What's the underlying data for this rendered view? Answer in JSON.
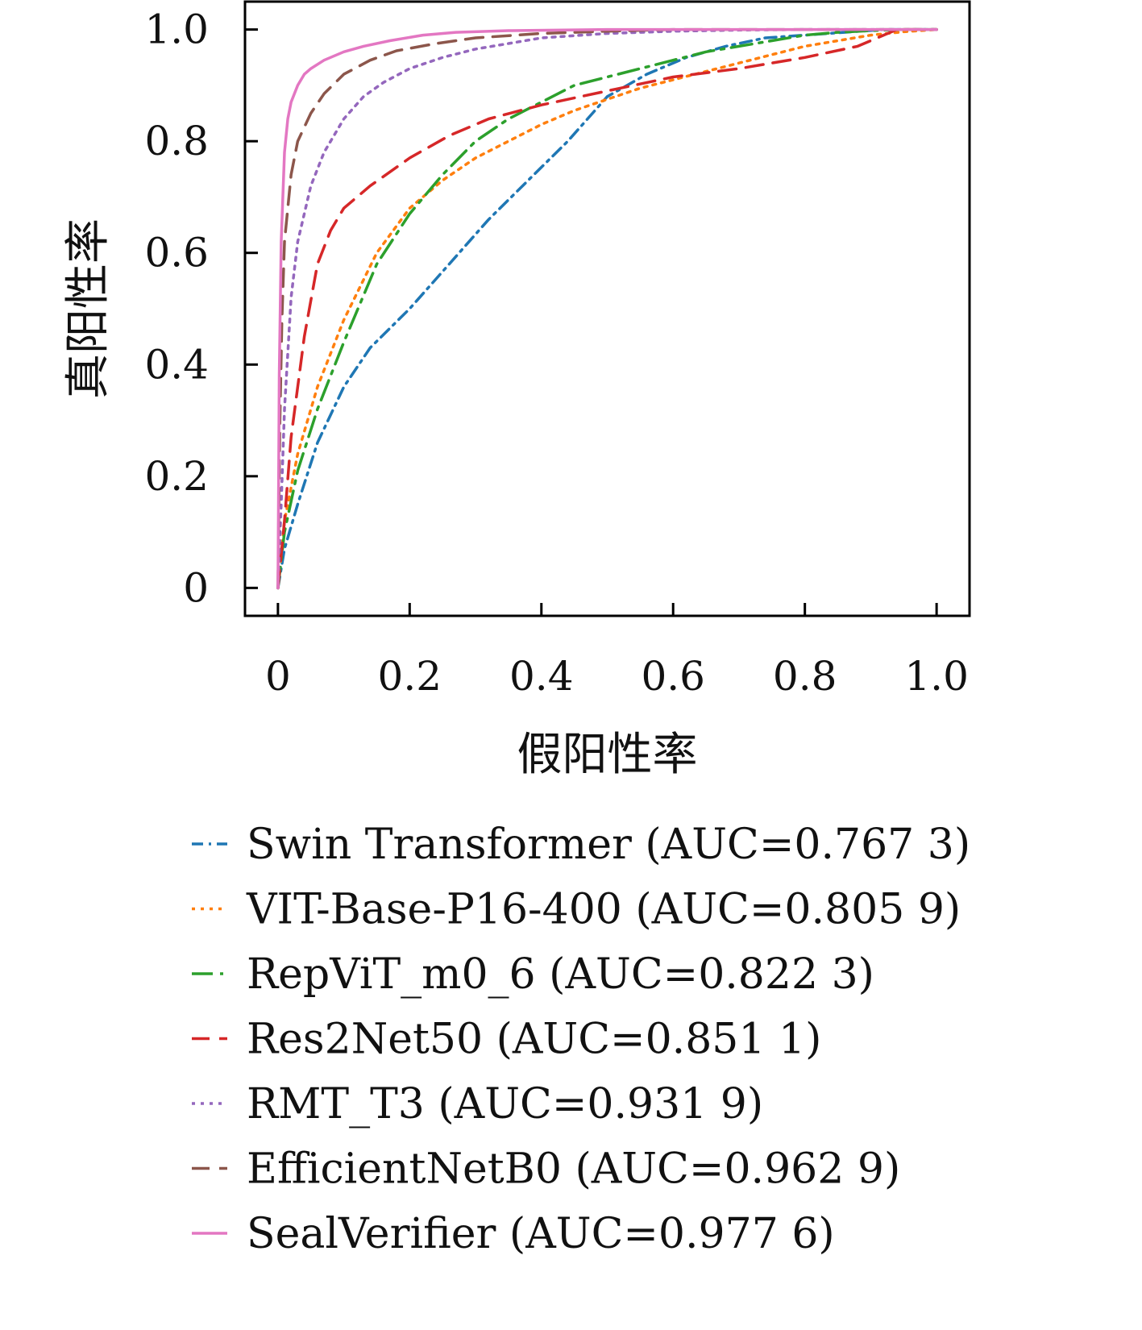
{
  "chart_data": {
    "type": "line",
    "title": "",
    "xlabel": "假阳性率",
    "ylabel": "真阳性率",
    "xlim": [
      -0.05,
      1.05
    ],
    "ylim": [
      -0.05,
      1.05
    ],
    "x_ticks": [
      0,
      0.2,
      0.4,
      0.6,
      0.8,
      1.0
    ],
    "y_ticks": [
      0,
      0.2,
      0.4,
      0.6,
      0.8,
      1.0
    ],
    "x_tick_labels": [
      "0",
      "0.2",
      "0.4",
      "0.6",
      "0.8",
      "1.0"
    ],
    "y_tick_labels": [
      "0",
      "0.2",
      "0.4",
      "0.6",
      "0.8",
      "1.0"
    ],
    "grid": false,
    "legend_position": "below",
    "series": [
      {
        "name": "Swin Transformer (AUC=0.767 3)",
        "color": "#1f77b4",
        "dash": "dashdot",
        "x": [
          0,
          0.01,
          0.03,
          0.06,
          0.1,
          0.14,
          0.2,
          0.26,
          0.32,
          0.38,
          0.44,
          0.5,
          0.56,
          0.62,
          0.68,
          0.74,
          0.8,
          0.86,
          0.92,
          0.96,
          1.0
        ],
        "y": [
          0,
          0.07,
          0.15,
          0.26,
          0.36,
          0.43,
          0.5,
          0.58,
          0.66,
          0.73,
          0.8,
          0.88,
          0.92,
          0.95,
          0.97,
          0.985,
          0.99,
          0.995,
          1.0,
          1.0,
          1.0
        ]
      },
      {
        "name": "VIT-Base-P16-400 (AUC=0.805 9)",
        "color": "#ff7f0e",
        "dash": "dotted",
        "x": [
          0,
          0.01,
          0.03,
          0.06,
          0.1,
          0.15,
          0.2,
          0.25,
          0.3,
          0.35,
          0.4,
          0.45,
          0.5,
          0.55,
          0.6,
          0.65,
          0.7,
          0.75,
          0.8,
          0.85,
          0.9,
          0.95,
          1.0
        ],
        "y": [
          0,
          0.12,
          0.24,
          0.36,
          0.48,
          0.6,
          0.68,
          0.73,
          0.77,
          0.8,
          0.83,
          0.855,
          0.875,
          0.895,
          0.91,
          0.925,
          0.94,
          0.955,
          0.97,
          0.98,
          0.99,
          0.996,
          1.0
        ]
      },
      {
        "name": "RepViT_m0_6 (AUC=0.822 3)",
        "color": "#2ca02c",
        "dash": "longdashdot",
        "x": [
          0,
          0.01,
          0.03,
          0.06,
          0.1,
          0.15,
          0.2,
          0.25,
          0.3,
          0.35,
          0.4,
          0.45,
          0.5,
          0.55,
          0.6,
          0.65,
          0.7,
          0.75,
          0.8,
          0.85,
          0.9,
          0.95,
          1.0
        ],
        "y": [
          0,
          0.1,
          0.21,
          0.32,
          0.44,
          0.58,
          0.67,
          0.74,
          0.8,
          0.84,
          0.87,
          0.9,
          0.915,
          0.93,
          0.945,
          0.96,
          0.97,
          0.98,
          0.99,
          0.995,
          0.998,
          1.0,
          1.0
        ]
      },
      {
        "name": "Res2Net50 (AUC=0.851 1)",
        "color": "#d62728",
        "dash": "dashed",
        "x": [
          0,
          0.01,
          0.02,
          0.04,
          0.06,
          0.08,
          0.1,
          0.14,
          0.2,
          0.26,
          0.32,
          0.4,
          0.5,
          0.6,
          0.7,
          0.8,
          0.88,
          0.94,
          1.0
        ],
        "y": [
          0,
          0.12,
          0.27,
          0.45,
          0.58,
          0.64,
          0.68,
          0.72,
          0.77,
          0.81,
          0.84,
          0.865,
          0.89,
          0.915,
          0.93,
          0.95,
          0.97,
          1.0,
          1.0
        ]
      },
      {
        "name": "RMT_T3 (AUC=0.931 9)",
        "color": "#9467bd",
        "dash": "dotted",
        "x": [
          0,
          0.005,
          0.01,
          0.02,
          0.03,
          0.05,
          0.07,
          0.1,
          0.13,
          0.16,
          0.2,
          0.25,
          0.3,
          0.35,
          0.4,
          0.5,
          0.6,
          0.7,
          0.8,
          0.9,
          1.0
        ],
        "y": [
          0,
          0.15,
          0.32,
          0.52,
          0.62,
          0.72,
          0.78,
          0.84,
          0.88,
          0.905,
          0.93,
          0.95,
          0.965,
          0.975,
          0.985,
          0.993,
          0.997,
          0.999,
          1.0,
          1.0,
          1.0
        ]
      },
      {
        "name": "EfficientNetB0 (AUC=0.962 9)",
        "color": "#8c564b",
        "dash": "dashed",
        "x": [
          0,
          0.003,
          0.006,
          0.01,
          0.02,
          0.03,
          0.05,
          0.07,
          0.1,
          0.14,
          0.18,
          0.24,
          0.3,
          0.4,
          0.5,
          0.6,
          0.8,
          1.0
        ],
        "y": [
          0,
          0.3,
          0.48,
          0.62,
          0.74,
          0.8,
          0.85,
          0.885,
          0.92,
          0.945,
          0.962,
          0.975,
          0.985,
          0.993,
          0.997,
          1.0,
          1.0,
          1.0
        ]
      },
      {
        "name": "SealVerifier (AUC=0.977 6)",
        "color": "#e377c2",
        "dash": "solid",
        "x": [
          0,
          0.002,
          0.005,
          0.01,
          0.015,
          0.02,
          0.03,
          0.04,
          0.05,
          0.07,
          0.1,
          0.13,
          0.17,
          0.22,
          0.27,
          0.35,
          0.5,
          0.7,
          1.0
        ],
        "y": [
          0,
          0.38,
          0.62,
          0.78,
          0.84,
          0.87,
          0.9,
          0.92,
          0.93,
          0.945,
          0.96,
          0.97,
          0.98,
          0.99,
          0.995,
          0.998,
          1.0,
          1.0,
          1.0
        ]
      }
    ]
  }
}
